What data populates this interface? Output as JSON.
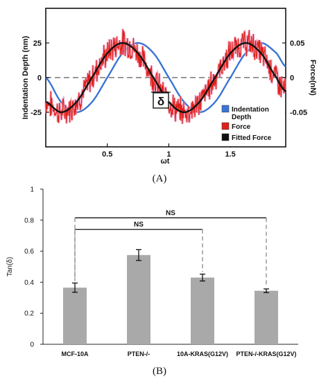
{
  "chart_data": [
    {
      "panel": "A",
      "panel_label": "(A)",
      "type": "line",
      "xlabel": "ωt",
      "ylabel_left": "Indentation Depth (nm)",
      "ylabel_right": "Force(nN)",
      "xlim": [
        0.0,
        1.95
      ],
      "ylim_left": [
        -50,
        50
      ],
      "ylim_right": [
        -0.1,
        0.1
      ],
      "x_ticks": [
        "0.5",
        "1",
        "1.5"
      ],
      "x_tick_values": [
        0.5,
        1.0,
        1.5
      ],
      "y_ticks_left": [
        "25",
        "0",
        "-25"
      ],
      "y_tick_values_left": [
        25,
        0,
        -25
      ],
      "y_ticks_right": [
        "0.05",
        "0",
        "-0.05"
      ],
      "y_tick_values_right": [
        0.05,
        0,
        -0.05
      ],
      "annotation": "δ",
      "grid": false,
      "legend_position": "bottom-right",
      "series": [
        {
          "name": "Indentation Depth",
          "color": "#3a74d4",
          "axis": "left",
          "x": [
            0.0,
            0.125,
            0.25,
            0.375,
            0.5,
            0.625,
            0.75,
            0.875,
            1.0,
            1.125,
            1.25,
            1.375,
            1.5,
            1.625,
            1.75,
            1.875,
            1.95
          ],
          "y": [
            0,
            -17.7,
            -25,
            -17.7,
            0,
            17.7,
            25,
            17.7,
            0,
            -17.7,
            -25,
            -17.7,
            0,
            17.7,
            25,
            17.7,
            7.8
          ]
        },
        {
          "name": "Force",
          "color": "#e0201b",
          "axis": "right",
          "style": "noisy",
          "x": [
            0.0,
            0.125,
            0.25,
            0.375,
            0.5,
            0.625,
            0.75,
            0.875,
            1.0,
            1.125,
            1.25,
            1.375,
            1.5,
            1.625,
            1.75,
            1.875,
            1.95
          ],
          "y": [
            -0.035,
            -0.05,
            -0.035,
            0.0,
            0.035,
            0.05,
            0.035,
            0.0,
            -0.035,
            -0.05,
            -0.035,
            0.0,
            0.035,
            0.05,
            0.035,
            0.0,
            -0.02
          ]
        },
        {
          "name": "Fitted Force",
          "color": "#111111",
          "axis": "right",
          "x": [
            0.0,
            0.125,
            0.25,
            0.375,
            0.5,
            0.625,
            0.75,
            0.875,
            1.0,
            1.125,
            1.25,
            1.375,
            1.5,
            1.625,
            1.75,
            1.875,
            1.95
          ],
          "y": [
            -0.035,
            -0.05,
            -0.035,
            0.0,
            0.035,
            0.05,
            0.035,
            0.0,
            -0.035,
            -0.05,
            -0.035,
            0.0,
            0.035,
            0.05,
            0.035,
            0.0,
            -0.02
          ]
        }
      ]
    },
    {
      "panel": "B",
      "panel_label": "(B)",
      "type": "bar",
      "ylabel": "Tan(δ)",
      "ylim": [
        0,
        1
      ],
      "y_ticks": [
        "0",
        "0.2",
        "0.4",
        "0.6",
        "0.8",
        "1"
      ],
      "y_tick_values": [
        0,
        0.2,
        0.4,
        0.6,
        0.8,
        1.0
      ],
      "categories": [
        "MCF-10A",
        "PTEN-/-",
        "10A-KRAS(G12V)",
        "PTEN-/-KRAS(G12V)"
      ],
      "values": [
        0.365,
        0.575,
        0.43,
        0.345
      ],
      "errors": [
        0.03,
        0.035,
        0.022,
        0.012
      ],
      "bar_color": "#a9a9a9",
      "grid": false,
      "significance": [
        {
          "from": 0,
          "to": 2,
          "label": "NS"
        },
        {
          "from": 0,
          "to": 3,
          "label": "NS"
        }
      ]
    }
  ]
}
